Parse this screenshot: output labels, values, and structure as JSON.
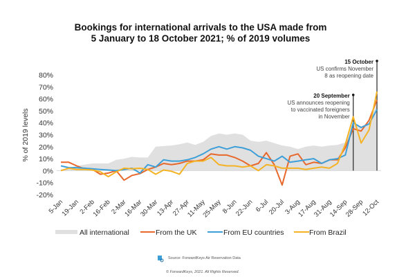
{
  "chart_data": {
    "type": "line",
    "title": [
      "Bookings for international arrivals to the USA made from",
      "5 January to 18 October 2021; % of 2019 volumes"
    ],
    "ylabel": "% of 2019 levels",
    "xlabel": "",
    "ylim": [
      -20,
      80
    ],
    "yticks": [
      -20,
      -10,
      0,
      10,
      20,
      30,
      40,
      50,
      60,
      70,
      80
    ],
    "ytick_labels": [
      "-20%",
      "-10%",
      "0%",
      "10%",
      "20%",
      "30%",
      "40%",
      "50%",
      "60%",
      "70%",
      "80%"
    ],
    "x_tick_labels": [
      "5-Jan",
      "19-Jan",
      "2-Feb",
      "16-Feb",
      "2-Mar",
      "16-Mar",
      "30-Mar",
      "13-Apr",
      "27-Apr",
      "11-May",
      "25-May",
      "8-Jun",
      "22-Jun",
      "6-Jul",
      "20-Jul",
      "3-Aug",
      "17-Aug",
      "31-Aug",
      "14-Sep",
      "28-Sep",
      "12-Oct"
    ],
    "x_weeks": 41,
    "series": [
      {
        "name": "All international",
        "kind": "area",
        "color": "#e0e0e0",
        "values": [
          1,
          2,
          4,
          5,
          6,
          6,
          6,
          9,
          10,
          11.5,
          11,
          11,
          20,
          20.5,
          21,
          22,
          23.5,
          21.5,
          24,
          29,
          31,
          30,
          31,
          30,
          25,
          24,
          25,
          23,
          21,
          20,
          18,
          20,
          21,
          20,
          21,
          21.5,
          23.5,
          40,
          37,
          40,
          56
        ]
      },
      {
        "name": "From the UK",
        "kind": "line",
        "color": "#e8672a",
        "values": [
          7,
          7,
          4,
          1.5,
          1,
          -3,
          -2,
          0,
          -8,
          -4,
          -2.5,
          1,
          3,
          6,
          5,
          6,
          8,
          8,
          9,
          14,
          13,
          13,
          11,
          8,
          4,
          6,
          15,
          5,
          -12,
          12,
          14,
          5,
          7,
          6,
          9,
          9,
          19,
          35,
          33,
          42,
          59
        ]
      },
      {
        "name": "From EU countries",
        "kind": "line",
        "color": "#3d9fd8",
        "values": [
          4,
          2.5,
          2.5,
          2,
          1.5,
          1,
          0.5,
          0,
          1,
          2,
          -2,
          5,
          3,
          9,
          8,
          8,
          9,
          11,
          14,
          18,
          20,
          18,
          20,
          19,
          17,
          12,
          10,
          8,
          12,
          7,
          8,
          9,
          10,
          6,
          9,
          10,
          13,
          40,
          36,
          39,
          51
        ]
      },
      {
        "name": "From Brazil",
        "kind": "line",
        "color": "#f5b324",
        "values": [
          0,
          2,
          1,
          1,
          0.5,
          -1,
          -5,
          -1,
          2,
          1.5,
          2,
          1,
          -3,
          0.5,
          -0.5,
          -3,
          6,
          8,
          8,
          11,
          5,
          4,
          4,
          3,
          4,
          0,
          5,
          4,
          2,
          2,
          2,
          1,
          2,
          3,
          2,
          6,
          22,
          45,
          23,
          34,
          66
        ]
      }
    ],
    "annotations": [
      {
        "week_index": 40,
        "title": "15 October",
        "lines": [
          "US confirms November",
          "8 as reopening date"
        ]
      },
      {
        "week_index": 37,
        "title": "20 September",
        "lines": [
          "US announces reopening",
          "to vaccinated foreigners",
          "in November"
        ]
      }
    ],
    "legend": {
      "placement": "bottom"
    }
  },
  "footer": {
    "source": "Source: ForwardKeys Air Reservation Data",
    "copyright": "© ForwardKeys, 2021. All Rights Reserved."
  }
}
